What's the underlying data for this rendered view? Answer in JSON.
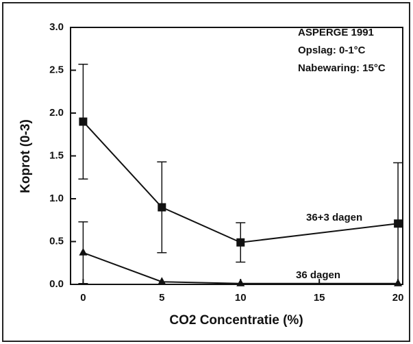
{
  "chart_data": {
    "type": "line",
    "xlabel": "CO2 Concentratie (%)",
    "ylabel": "Koprot (0-3)",
    "annotations": [
      "ASPERGE 1991",
      "Opslag: 0-1°C",
      "Nabewaring: 15°C"
    ],
    "x": [
      0,
      5,
      10,
      20
    ],
    "series": [
      {
        "name": "36+3 dagen",
        "color": "#111111",
        "marker": "square",
        "values": [
          1.9,
          0.9,
          0.49,
          0.71
        ],
        "errors": [
          0.67,
          0.53,
          0.23,
          0.71
        ]
      },
      {
        "name": "36 dagen",
        "color": "#111111",
        "marker": "triangle",
        "values": [
          0.37,
          0.03,
          0.01,
          0.01
        ],
        "errors": [
          0.36,
          null,
          null,
          null
        ]
      }
    ],
    "xlim": [
      -0.8,
      20.3
    ],
    "ylim": [
      0,
      3
    ],
    "xticks": [
      0,
      5,
      10,
      15,
      20
    ],
    "yticks": [
      {
        "value": 0,
        "label": "0.0"
      },
      {
        "value": 0.5,
        "label": "0.5"
      },
      {
        "value": 1,
        "label": "1.0"
      },
      {
        "value": 1.5,
        "label": "1.5"
      },
      {
        "value": 2,
        "label": "2.0"
      },
      {
        "value": 2.5,
        "label": "2.5"
      },
      {
        "value": 3,
        "label": "3.0"
      }
    ],
    "grid": false
  }
}
